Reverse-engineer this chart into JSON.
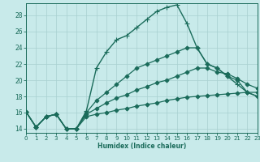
{
  "xlabel": "Humidex (Indice chaleur)",
  "ylabel": "",
  "background_color": "#c8eaea",
  "grid_color": "#a8d0d0",
  "line_color": "#1a6b5a",
  "xlim": [
    0,
    23
  ],
  "ylim": [
    13.5,
    29.5
  ],
  "xticks": [
    0,
    1,
    2,
    3,
    4,
    5,
    6,
    7,
    8,
    9,
    10,
    11,
    12,
    13,
    14,
    15,
    16,
    17,
    18,
    19,
    20,
    21,
    22,
    23
  ],
  "yticks": [
    14,
    16,
    18,
    20,
    22,
    24,
    26,
    28
  ],
  "series": [
    {
      "x": [
        0,
        1,
        2,
        3,
        4,
        5,
        6,
        7,
        8,
        9,
        10,
        11,
        12,
        13,
        14,
        15,
        16,
        17,
        18,
        19,
        20,
        21,
        22,
        23
      ],
      "y": [
        16.1,
        14.2,
        15.5,
        15.8,
        14.0,
        14.0,
        16.2,
        21.5,
        23.5,
        25.0,
        25.5,
        26.5,
        27.5,
        28.5,
        29.0,
        29.3,
        27.0,
        24.0,
        22.0,
        21.5,
        20.5,
        19.5,
        18.5,
        18.0
      ],
      "marker": "+",
      "markersize": 4,
      "lw": 1.0
    },
    {
      "x": [
        0,
        1,
        2,
        3,
        4,
        5,
        6,
        7,
        8,
        9,
        10,
        11,
        12,
        13,
        14,
        15,
        16,
        17,
        18,
        19,
        20,
        21,
        22,
        23
      ],
      "y": [
        16.1,
        14.2,
        15.5,
        15.8,
        14.0,
        14.0,
        16.0,
        17.5,
        18.5,
        19.5,
        20.5,
        21.5,
        22.0,
        22.5,
        23.0,
        23.5,
        24.0,
        24.0,
        22.0,
        21.5,
        20.5,
        20.0,
        18.5,
        18.0
      ],
      "marker": "D",
      "markersize": 2.5,
      "lw": 0.9
    },
    {
      "x": [
        0,
        1,
        2,
        3,
        4,
        5,
        6,
        7,
        8,
        9,
        10,
        11,
        12,
        13,
        14,
        15,
        16,
        17,
        18,
        19,
        20,
        21,
        22,
        23
      ],
      "y": [
        16.1,
        14.2,
        15.5,
        15.8,
        14.0,
        14.0,
        15.8,
        16.5,
        17.2,
        17.8,
        18.2,
        18.8,
        19.2,
        19.7,
        20.0,
        20.5,
        21.0,
        21.5,
        21.5,
        21.0,
        20.8,
        20.2,
        19.5,
        19.0
      ],
      "marker": "D",
      "markersize": 2.5,
      "lw": 0.9
    },
    {
      "x": [
        0,
        1,
        2,
        3,
        4,
        5,
        6,
        7,
        8,
        9,
        10,
        11,
        12,
        13,
        14,
        15,
        16,
        17,
        18,
        19,
        20,
        21,
        22,
        23
      ],
      "y": [
        16.1,
        14.2,
        15.5,
        15.8,
        14.0,
        14.0,
        15.5,
        15.8,
        16.0,
        16.3,
        16.5,
        16.8,
        17.0,
        17.2,
        17.5,
        17.7,
        17.9,
        18.0,
        18.1,
        18.2,
        18.3,
        18.4,
        18.5,
        18.5
      ],
      "marker": "D",
      "markersize": 2.5,
      "lw": 0.9
    }
  ]
}
